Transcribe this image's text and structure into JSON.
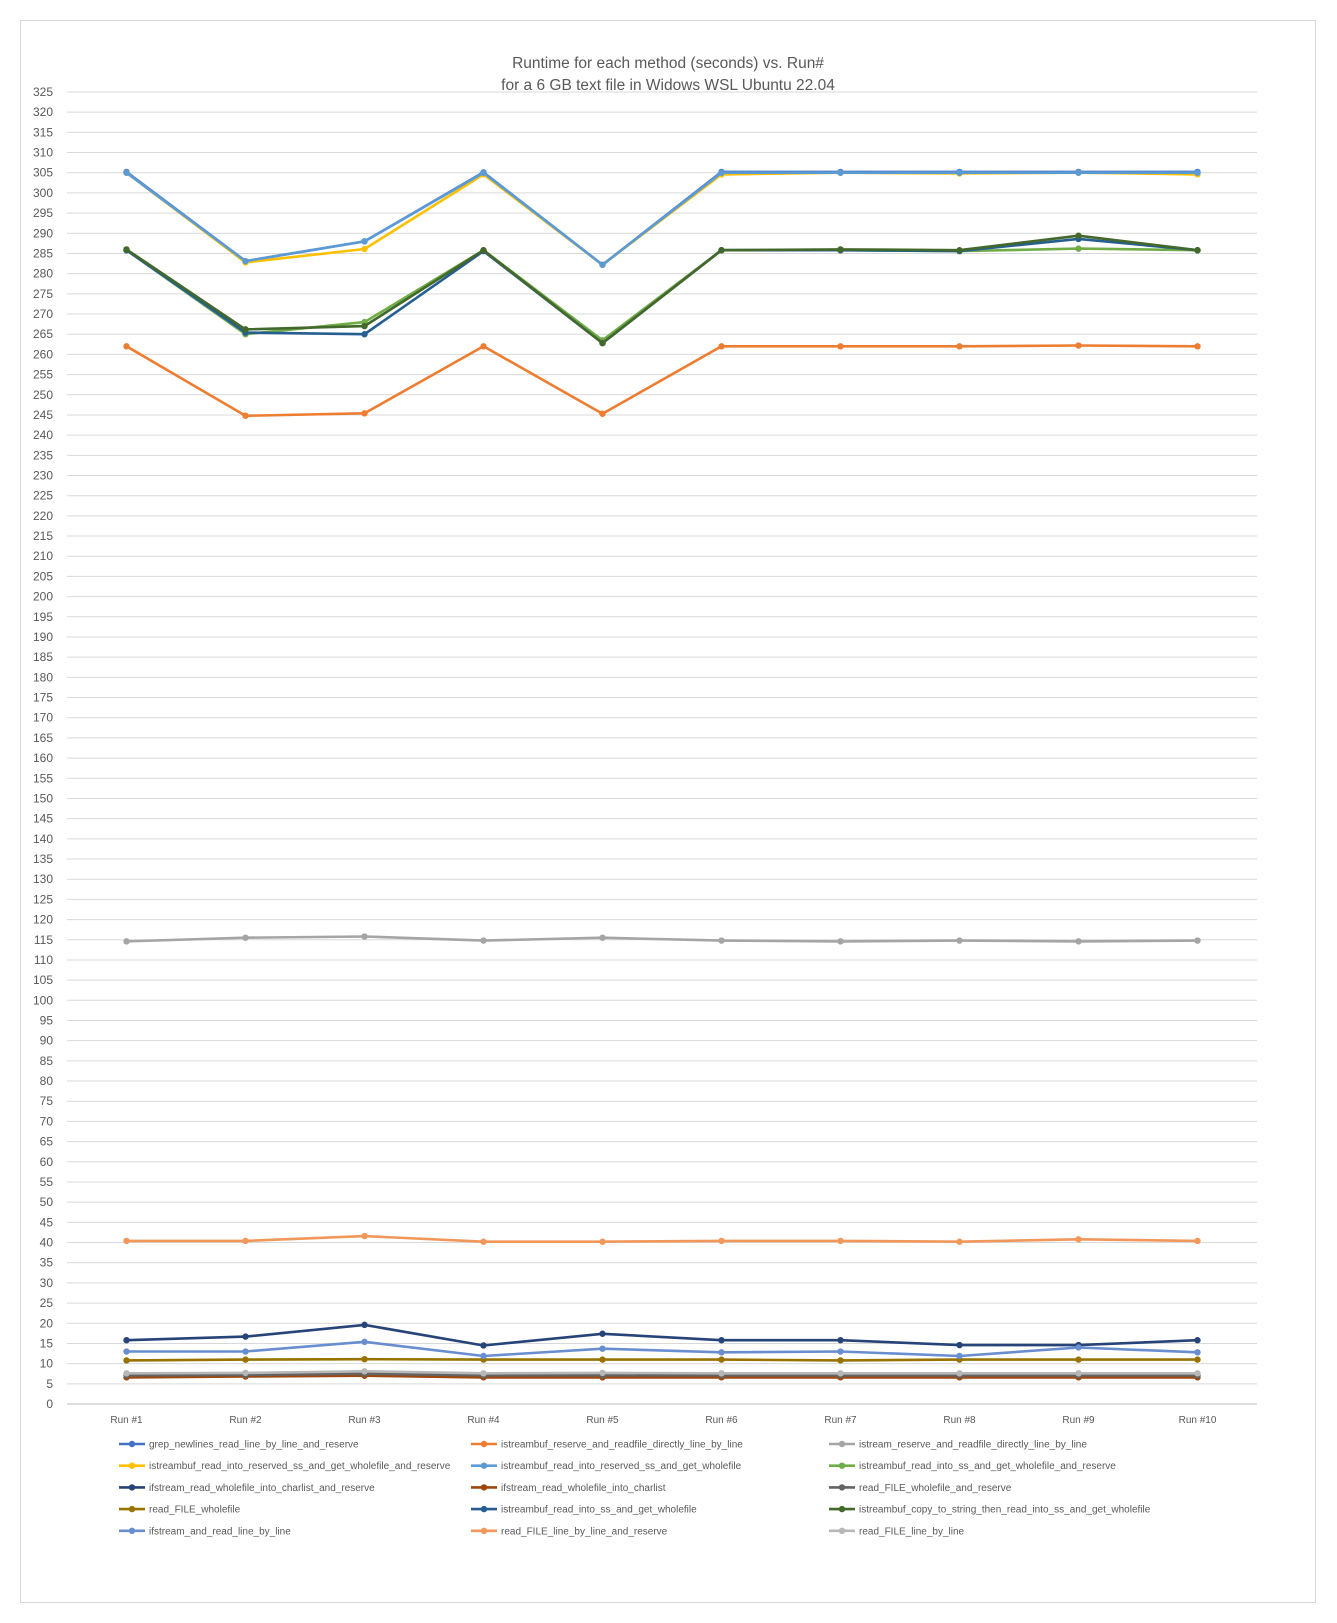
{
  "chart_data": {
    "type": "line",
    "title": "Runtime for each method (seconds) vs. Run#",
    "subtitle": "for a 6 GB text file in Widows WSL Ubuntu 22.04",
    "xlabel": "",
    "ylabel": "",
    "ylim": [
      0,
      325
    ],
    "ytick_step": 5,
    "grid": true,
    "legend_position": "bottom",
    "categories": [
      "Run #1",
      "Run #2",
      "Run #3",
      "Run #4",
      "Run #5",
      "Run #6",
      "Run #7",
      "Run #8",
      "Run #9",
      "Run #10"
    ],
    "series": [
      {
        "name": "grep_newlines_read_line_by_line_and_reserve",
        "color": "#4472c4",
        "values": [
          305.2,
          283.1,
          288.0,
          305.1,
          282.2,
          305.2,
          305.2,
          305.2,
          305.2,
          305.2
        ]
      },
      {
        "name": "istreambuf_reserve_and_readfile_directly_line_by_line",
        "color": "#ed7d31",
        "values": [
          262.0,
          244.8,
          245.4,
          262.0,
          245.3,
          262.0,
          262.0,
          262.0,
          262.2,
          262.0
        ]
      },
      {
        "name": "istream_reserve_and_readfile_directly_line_by_line",
        "color": "#a5a5a5",
        "values": [
          114.6,
          115.5,
          115.8,
          114.8,
          115.5,
          114.8,
          114.6,
          114.8,
          114.6,
          114.8
        ]
      },
      {
        "name": "istreambuf_read_into_reserved_ss_and_get_wholefile_and_reserve",
        "color": "#ffc000",
        "values": [
          305.0,
          282.8,
          286.1,
          304.6,
          282.2,
          304.6,
          305.0,
          304.8,
          305.0,
          304.6
        ]
      },
      {
        "name": "istreambuf_read_into_reserved_ss_and_get_wholefile",
        "color": "#5b9bd5",
        "values": [
          305.0,
          283.1,
          288.0,
          305.0,
          282.2,
          305.0,
          305.0,
          305.0,
          305.0,
          305.0
        ]
      },
      {
        "name": "istreambuf_read_into_ss_and_get_wholefile_and_reserve",
        "color": "#70ad47",
        "values": [
          285.8,
          265.0,
          268.0,
          285.8,
          263.5,
          285.8,
          285.8,
          285.6,
          286.2,
          285.8
        ]
      },
      {
        "name": "ifstream_read_wholefile_into_charlist_and_reserve",
        "color": "#264478",
        "values": [
          15.8,
          16.7,
          19.6,
          14.5,
          17.4,
          15.8,
          15.8,
          14.6,
          14.6,
          15.8
        ]
      },
      {
        "name": "ifstream_read_wholefile_into_charlist",
        "color": "#9e480e",
        "values": [
          6.6,
          6.8,
          7.0,
          6.6,
          6.6,
          6.6,
          6.6,
          6.6,
          6.6,
          6.6
        ]
      },
      {
        "name": "read_FILE_wholefile_and_reserve",
        "color": "#636363",
        "values": [
          7.1,
          7.2,
          7.5,
          7.1,
          7.1,
          7.1,
          7.1,
          7.1,
          7.1,
          7.1
        ]
      },
      {
        "name": "read_FILE_wholefile",
        "color": "#997300",
        "values": [
          10.8,
          11.0,
          11.1,
          11.0,
          11.0,
          11.0,
          10.8,
          11.0,
          11.0,
          11.0
        ]
      },
      {
        "name": "istreambuf_read_into_ss_and_get_wholefile",
        "color": "#255e91",
        "values": [
          285.8,
          265.4,
          265.0,
          285.6,
          262.8,
          285.8,
          285.8,
          285.6,
          288.6,
          285.8
        ]
      },
      {
        "name": "istreambuf_copy_to_string_then_read_into_ss_and_get_wholefile",
        "color": "#43682b",
        "values": [
          286.0,
          266.2,
          267.0,
          285.8,
          262.8,
          285.8,
          286.0,
          285.8,
          289.4,
          285.8
        ]
      },
      {
        "name": "ifstream_and_read_line_by_line",
        "color": "#698ed0",
        "values": [
          13.0,
          13.0,
          15.4,
          11.9,
          13.7,
          12.8,
          13.0,
          11.9,
          14.0,
          12.8
        ]
      },
      {
        "name": "read_FILE_line_by_line_and_reserve",
        "color": "#f1975a",
        "values": [
          40.4,
          40.4,
          41.6,
          40.2,
          40.2,
          40.4,
          40.4,
          40.2,
          40.8,
          40.4
        ]
      },
      {
        "name": "read_FILE_line_by_line",
        "color": "#b7b7b7",
        "values": [
          7.6,
          7.7,
          8.1,
          7.6,
          7.7,
          7.6,
          7.6,
          7.6,
          7.6,
          7.6
        ]
      }
    ]
  }
}
